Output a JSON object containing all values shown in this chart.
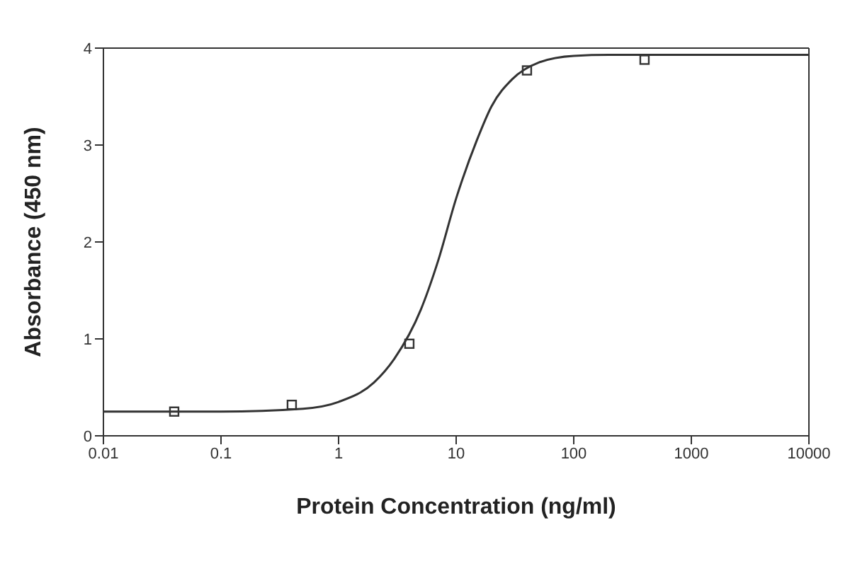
{
  "chart_data": {
    "type": "scatter",
    "xlabel": "Protein Concentration (ng/ml)",
    "ylabel": "Absorbance (450 nm)",
    "log": "x",
    "xlim": [
      0.01,
      10000
    ],
    "xticks": [
      0.01,
      0.1,
      1,
      10,
      100,
      1000,
      10000
    ],
    "ylim": [
      0,
      4
    ],
    "yticks": [
      0,
      1,
      2,
      3,
      4
    ],
    "grid": false,
    "legend": false,
    "series": [
      {
        "color": "#333333",
        "marker": "square",
        "x": [
          0.04,
          0.4,
          4,
          40,
          400
        ],
        "values": [
          0.25,
          0.32,
          0.95,
          3.77,
          3.88
        ]
      },
      {
        "type": "line",
        "color": "#333333",
        "marker": "none",
        "x": [
          0.01,
          0.1,
          0.5,
          1,
          2,
          3,
          5,
          7,
          10,
          15,
          20,
          30,
          50,
          100,
          200,
          10000
        ],
        "values": [
          0.25,
          0.25,
          0.28,
          0.35,
          0.55,
          0.8,
          1.3,
          1.8,
          2.45,
          3.05,
          3.4,
          3.68,
          3.85,
          3.92,
          3.93,
          3.93
        ]
      }
    ]
  }
}
